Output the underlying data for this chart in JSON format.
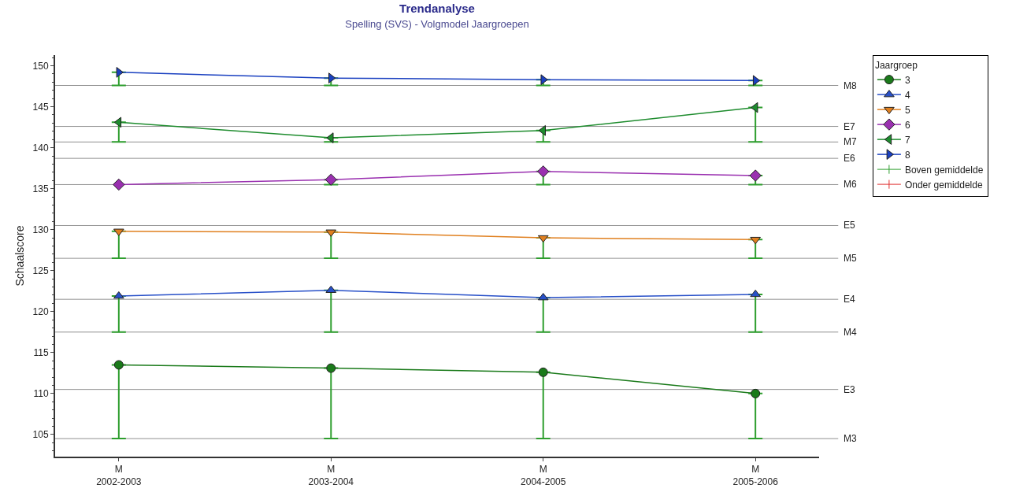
{
  "chart_data": {
    "type": "line",
    "title": "Trendanalyse",
    "subtitle": "Spelling (SVS) - Volgmodel Jaargroepen",
    "ylabel": "Schaalscore",
    "legend_title": "Jaargroep",
    "categories": [
      "M\n2002-2003",
      "M\n2003-2004",
      "M\n2004-2005",
      "M\n2005-2006"
    ],
    "series": [
      {
        "name": "3",
        "color": "#1a7a1a",
        "marker": "circle",
        "values": [
          113.5,
          113.1,
          112.6,
          110.0
        ],
        "errors": [
          [
            104.5,
            113.5
          ],
          [
            104.5,
            113.1
          ],
          [
            104.5,
            112.6
          ],
          [
            104.5,
            110.0
          ]
        ]
      },
      {
        "name": "4",
        "color": "#2850c8",
        "marker": "triangle-up",
        "values": [
          121.9,
          122.6,
          121.7,
          122.1
        ],
        "errors": [
          [
            117.5,
            121.9
          ],
          [
            117.5,
            122.6
          ],
          [
            117.5,
            121.7
          ],
          [
            117.5,
            122.1
          ]
        ]
      },
      {
        "name": "5",
        "color": "#e08020",
        "marker": "triangle-down",
        "values": [
          129.8,
          129.7,
          129.0,
          128.8
        ],
        "errors": [
          [
            126.5,
            129.8
          ],
          [
            126.5,
            129.7
          ],
          [
            126.5,
            129.0
          ],
          [
            126.5,
            128.8
          ]
        ]
      },
      {
        "name": "6",
        "color": "#9a30b0",
        "marker": "diamond",
        "values": [
          135.5,
          136.1,
          137.1,
          136.6
        ],
        "errors": [
          null,
          [
            135.5,
            136.1
          ],
          [
            135.5,
            137.1
          ],
          [
            135.5,
            136.6
          ]
        ]
      },
      {
        "name": "7",
        "color": "#1e8c2e",
        "marker": "triangle-left",
        "values": [
          143.1,
          141.2,
          142.1,
          144.9
        ],
        "errors": [
          [
            140.7,
            143.1
          ],
          [
            140.7,
            141.2
          ],
          [
            140.7,
            142.1
          ],
          [
            140.7,
            144.9
          ]
        ]
      },
      {
        "name": "8",
        "color": "#1a40c0",
        "marker": "triangle-right",
        "values": [
          149.2,
          148.5,
          148.3,
          148.2
        ],
        "errors": [
          [
            147.6,
            149.2
          ],
          [
            147.6,
            148.5
          ],
          [
            147.6,
            148.3
          ],
          [
            147.6,
            148.2
          ]
        ]
      },
      {
        "name": "Boven gemiddelde",
        "color": "#2e9e2e",
        "marker": "none",
        "values": [
          null,
          null,
          null,
          null
        ]
      },
      {
        "name": "Onder gemiddelde",
        "color": "#e03030",
        "marker": "none",
        "values": [
          null,
          null,
          null,
          null
        ]
      }
    ],
    "ylim": [
      102.3,
      151.3
    ],
    "yticks": [
      105,
      110,
      115,
      120,
      125,
      130,
      135,
      140,
      145,
      150
    ],
    "ref_lines": [
      {
        "axis": "y",
        "value": 147.6,
        "label": "M8",
        "color": "#909090"
      },
      {
        "axis": "y",
        "value": 142.6,
        "label": "E7",
        "color": "#909090"
      },
      {
        "axis": "y",
        "value": 140.7,
        "label": "M7",
        "color": "#909090"
      },
      {
        "axis": "y",
        "value": 138.7,
        "label": "E6",
        "color": "#909090"
      },
      {
        "axis": "y",
        "value": 135.5,
        "label": "M6",
        "color": "#909090"
      },
      {
        "axis": "y",
        "value": 130.5,
        "label": "E5",
        "color": "#909090"
      },
      {
        "axis": "y",
        "value": 126.5,
        "label": "M5",
        "color": "#909090"
      },
      {
        "axis": "y",
        "value": 121.5,
        "label": "E4",
        "color": "#909090"
      },
      {
        "axis": "y",
        "value": 117.5,
        "label": "M4",
        "color": "#909090"
      },
      {
        "axis": "y",
        "value": 110.5,
        "label": "E3",
        "color": "#909090"
      },
      {
        "axis": "y",
        "value": 104.5,
        "label": "M3",
        "color": "#909090"
      }
    ],
    "grid": false,
    "legend": "top right"
  }
}
